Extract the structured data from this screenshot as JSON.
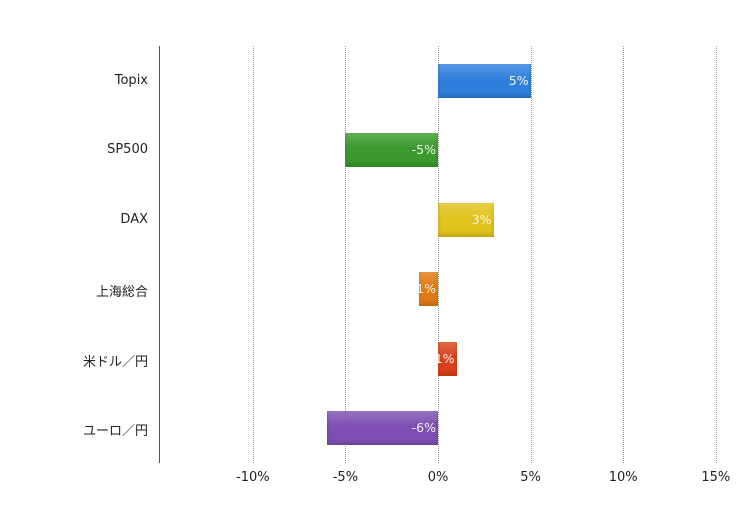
{
  "chart_data": {
    "type": "bar",
    "orientation": "horizontal",
    "title": "",
    "xlabel": "",
    "ylabel": "",
    "categories": [
      "Topix",
      "SP500",
      "DAX",
      "上海総合",
      "米ドル／円",
      "ユーロ／円"
    ],
    "values": [
      5,
      -5,
      3,
      -1,
      1,
      -6
    ],
    "value_labels": [
      "5%",
      "-5%",
      "3%",
      "-1%",
      "1%",
      "-6%"
    ],
    "colors": [
      "#2f7fdc",
      "#3a9a2e",
      "#e2c21c",
      "#e07a12",
      "#d9411a",
      "#7d4fb3"
    ],
    "xlim": [
      -15,
      15
    ],
    "xticks": [
      -10,
      -5,
      0,
      5,
      10,
      15
    ],
    "xtick_labels": [
      "-10%",
      "-5%",
      "0%",
      "5%",
      "10%",
      "15%"
    ],
    "grid": "vertical dotted",
    "legend": "none"
  }
}
